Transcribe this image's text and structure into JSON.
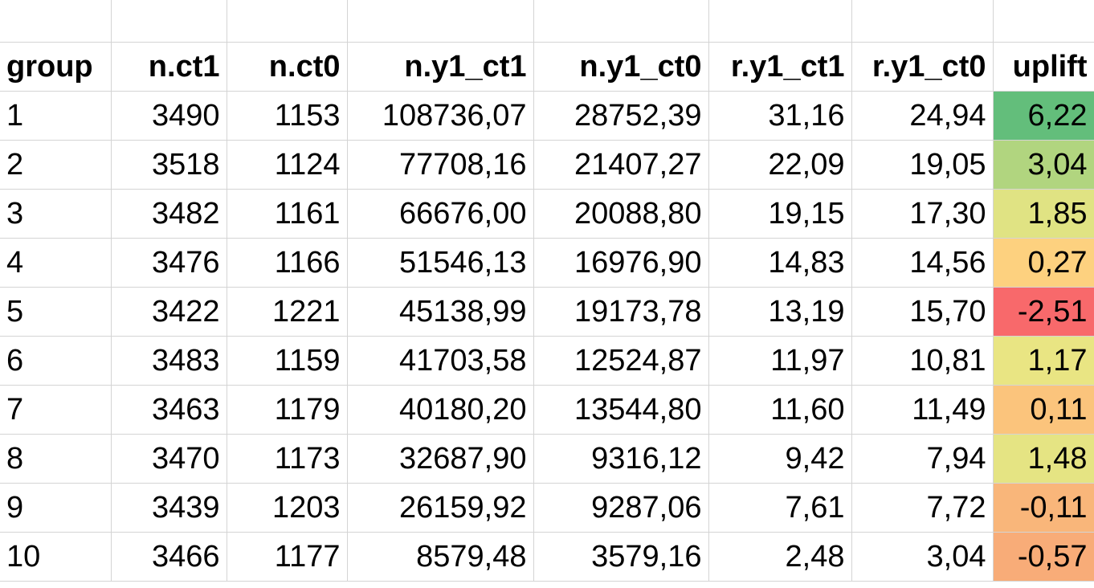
{
  "table": {
    "headers": [
      "group",
      "n.ct1",
      "n.ct0",
      "n.y1_ct1",
      "n.y1_ct0",
      "r.y1_ct1",
      "r.y1_ct0",
      "uplift"
    ],
    "rows": [
      [
        "1",
        "3490",
        "1153",
        "108736,07",
        "28752,39",
        "31,16",
        "24,94",
        "6,22"
      ],
      [
        "2",
        "3518",
        "1124",
        "77708,16",
        "21407,27",
        "22,09",
        "19,05",
        "3,04"
      ],
      [
        "3",
        "3482",
        "1161",
        "66676,00",
        "20088,80",
        "19,15",
        "17,30",
        "1,85"
      ],
      [
        "4",
        "3476",
        "1166",
        "51546,13",
        "16976,90",
        "14,83",
        "14,56",
        "0,27"
      ],
      [
        "5",
        "3422",
        "1221",
        "45138,99",
        "19173,78",
        "13,19",
        "15,70",
        "-2,51"
      ],
      [
        "6",
        "3483",
        "1159",
        "41703,58",
        "12524,87",
        "11,97",
        "10,81",
        "1,17"
      ],
      [
        "7",
        "3463",
        "1179",
        "40180,20",
        "13544,80",
        "11,60",
        "11,49",
        "0,11"
      ],
      [
        "8",
        "3470",
        "1173",
        "32687,90",
        "9316,12",
        "9,42",
        "7,94",
        "1,48"
      ],
      [
        "9",
        "3439",
        "1203",
        "26159,92",
        "9287,06",
        "7,61",
        "7,72",
        "-0,11"
      ],
      [
        "10",
        "3466",
        "1177",
        "8579,48",
        "3579,16",
        "2,48",
        "3,04",
        "-0,57"
      ]
    ],
    "uplift_colors": [
      "#63be7b",
      "#b1d57f",
      "#e0e383",
      "#fdd17f",
      "#f8696b",
      "#e9e583",
      "#fbc47c",
      "#e5e483",
      "#f9b67a",
      "#f8ac78"
    ]
  }
}
